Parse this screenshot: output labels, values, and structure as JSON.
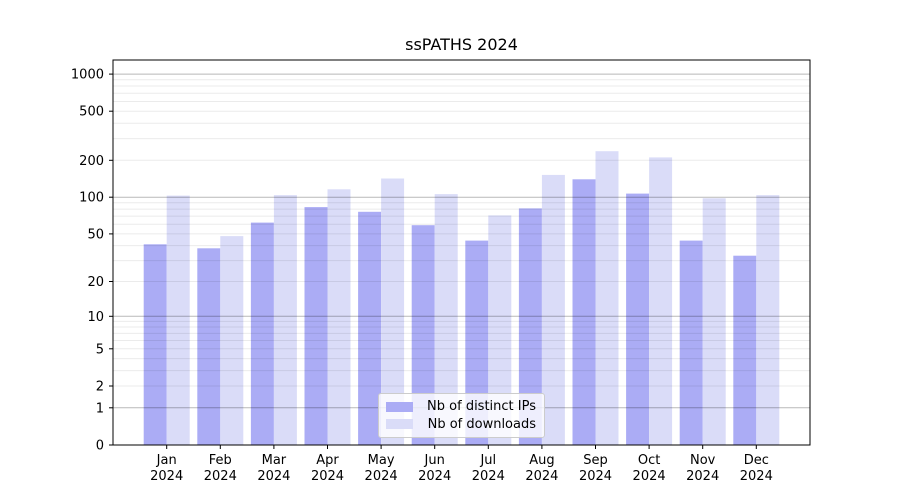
{
  "title": "ssPATHS 2024",
  "chart_data": {
    "type": "bar",
    "title": "ssPATHS 2024",
    "scale": "log1p (symlog-like: 0 at baseline, decades equal above)",
    "categories": [
      "Jan 2024",
      "Feb 2024",
      "Mar 2024",
      "Apr 2024",
      "May 2024",
      "Jun 2024",
      "Jul 2024",
      "Aug 2024",
      "Sep 2024",
      "Oct 2024",
      "Nov 2024",
      "Dec 2024"
    ],
    "series": [
      {
        "name": "Nb of distinct IPs",
        "color": "#abacf5",
        "values": [
          41,
          38,
          62,
          83,
          76,
          59,
          44,
          81,
          140,
          107,
          44,
          33
        ]
      },
      {
        "name": "Nb of downloads",
        "color": "#dadcf8",
        "values": [
          103,
          48,
          104,
          116,
          142,
          106,
          71,
          152,
          237,
          211,
          98,
          104
        ]
      }
    ],
    "yticks": [
      0,
      1,
      2,
      5,
      10,
      20,
      50,
      100,
      200,
      500,
      1000
    ],
    "ylim": [
      0,
      1300
    ],
    "xlabel": "",
    "ylabel": "",
    "grid": "horizontal; major lines at 1,10,100,1000; faint minor log lines",
    "legend_position": "lower center"
  },
  "colors": {
    "distinct_ips_bar": "#abacf5",
    "downloads_bar": "#dadcf8",
    "major_gridline": "#b5b5b5",
    "minor_gridline": "#ebebeb",
    "axis": "#000000",
    "background": "#ffffff"
  }
}
